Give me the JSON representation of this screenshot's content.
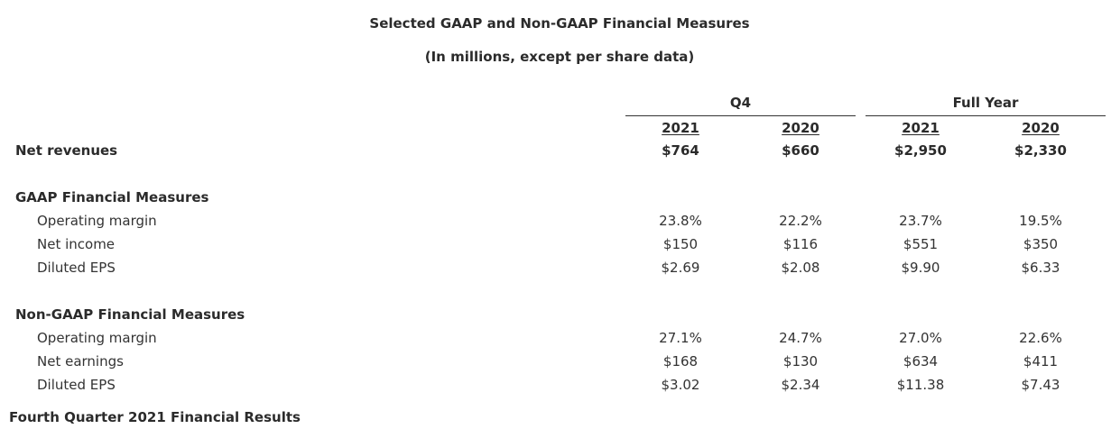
{
  "title": "Selected GAAP and Non-GAAP Financial Measures",
  "subtitle": "(In millions, except per share data)",
  "column_groups": [
    {
      "label": "Q4"
    },
    {
      "label": "Full Year"
    }
  ],
  "columns": [
    "2021",
    "2020",
    "2021",
    "2020"
  ],
  "net_revenues": {
    "label": "Net revenues",
    "values": [
      "$764",
      "$660",
      "$2,950",
      "$2,330"
    ]
  },
  "gaap": {
    "heading": "GAAP Financial Measures",
    "rows": [
      {
        "label": "Operating margin",
        "values": [
          "23.8%",
          "22.2%",
          "23.7%",
          "19.5%"
        ]
      },
      {
        "label": "Net income",
        "values": [
          "$150",
          "$116",
          "$551",
          "$350"
        ]
      },
      {
        "label": "Diluted EPS",
        "values": [
          "$2.69",
          "$2.08",
          "$9.90",
          "$6.33"
        ]
      }
    ]
  },
  "non_gaap": {
    "heading": "Non-GAAP Financial Measures",
    "rows": [
      {
        "label": "Operating margin",
        "values": [
          "27.1%",
          "24.7%",
          "27.0%",
          "22.6%"
        ]
      },
      {
        "label": "Net earnings",
        "values": [
          "$168",
          "$130",
          "$634",
          "$411"
        ]
      },
      {
        "label": "Diluted EPS",
        "values": [
          "$3.02",
          "$2.34",
          "$11.38",
          "$7.43"
        ]
      }
    ]
  },
  "footer_heading": "Fourth Quarter 2021 Financial Results"
}
